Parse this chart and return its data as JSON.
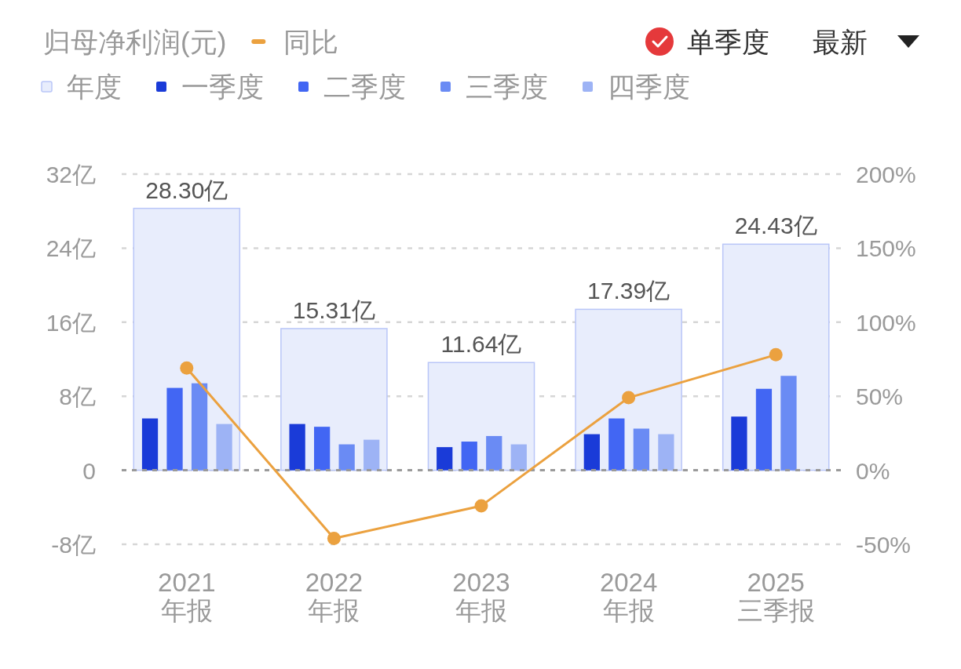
{
  "chart_data": {
    "type": "bar",
    "title": "归母净利润(元)",
    "categories": [
      "2021\n年报",
      "2022\n年报",
      "2023\n年报",
      "2024\n年报",
      "2025\n三季报"
    ],
    "series": [
      {
        "name": "年度",
        "color": "#e8edfc",
        "values": [
          28.3,
          15.31,
          11.64,
          17.39,
          24.43
        ],
        "value_labels": [
          "28.30亿",
          "15.31亿",
          "11.64亿",
          "17.39亿",
          "24.43亿"
        ]
      },
      {
        "name": "一季度",
        "color": "#1a3bd8",
        "values": [
          5.6,
          5.0,
          2.5,
          3.9,
          5.8
        ]
      },
      {
        "name": "二季度",
        "color": "#4266f3",
        "values": [
          8.9,
          4.7,
          3.1,
          5.6,
          8.8
        ]
      },
      {
        "name": "三季度",
        "color": "#6a8bf4",
        "values": [
          9.4,
          2.8,
          3.7,
          4.5,
          10.2
        ]
      },
      {
        "name": "四季度",
        "color": "#9db3f5",
        "values": [
          5.0,
          3.3,
          2.8,
          3.9,
          null
        ]
      },
      {
        "name": "同比",
        "type": "line",
        "axis": "y2",
        "color": "#eba13f",
        "marker": "circle",
        "values": [
          69,
          -46,
          -24,
          49,
          78
        ]
      }
    ],
    "ylim": [
      -8,
      32
    ],
    "yticks": [
      {
        "value": -8,
        "label": "-8亿"
      },
      0,
      {
        "value": 8,
        "label": "8亿"
      },
      {
        "value": 16,
        "label": "16亿"
      },
      {
        "value": 24,
        "label": "24亿"
      },
      {
        "value": 32,
        "label": "32亿"
      }
    ],
    "y2lim": [
      -50,
      200
    ],
    "y2ticks": [
      {
        "value": -50,
        "label": "-50%"
      },
      {
        "value": 0,
        "label": "0%"
      },
      {
        "value": 50,
        "label": "50%"
      },
      {
        "value": 100,
        "label": "100%"
      },
      {
        "value": 150,
        "label": "150%"
      },
      {
        "value": 200,
        "label": "200%"
      }
    ],
    "ref_lines": [
      {
        "axis": "y",
        "value": 0,
        "color": "#9a9a9a",
        "line_style": "dashed"
      }
    ],
    "grid": "y",
    "legend": "top left",
    "annotations": [
      "单季度",
      "最新"
    ]
  }
}
